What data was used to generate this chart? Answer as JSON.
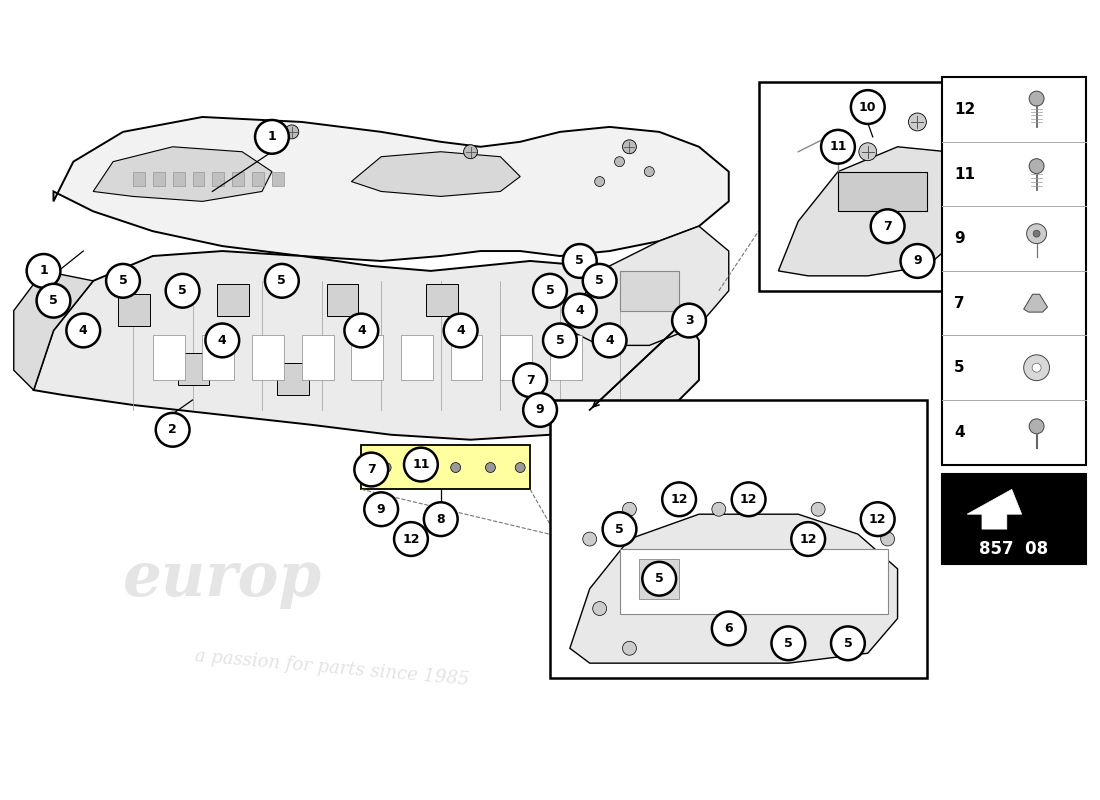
{
  "bg_color": "#ffffff",
  "watermark1": "europ",
  "watermark2": "a passion for parts since 1985",
  "part_code": "857 08",
  "circle_fill": "#ffffff",
  "circle_edge": "#000000",
  "line_color": "#000000",
  "sketch_fill": "#eeeeee",
  "sketch_fill2": "#e0e0e0",
  "highlight_yellow": "#ffffa0",
  "legend_numbers": [
    12,
    11,
    9,
    7,
    5,
    4
  ],
  "legend_bg": "#000000",
  "table_bg": "#ffffff"
}
